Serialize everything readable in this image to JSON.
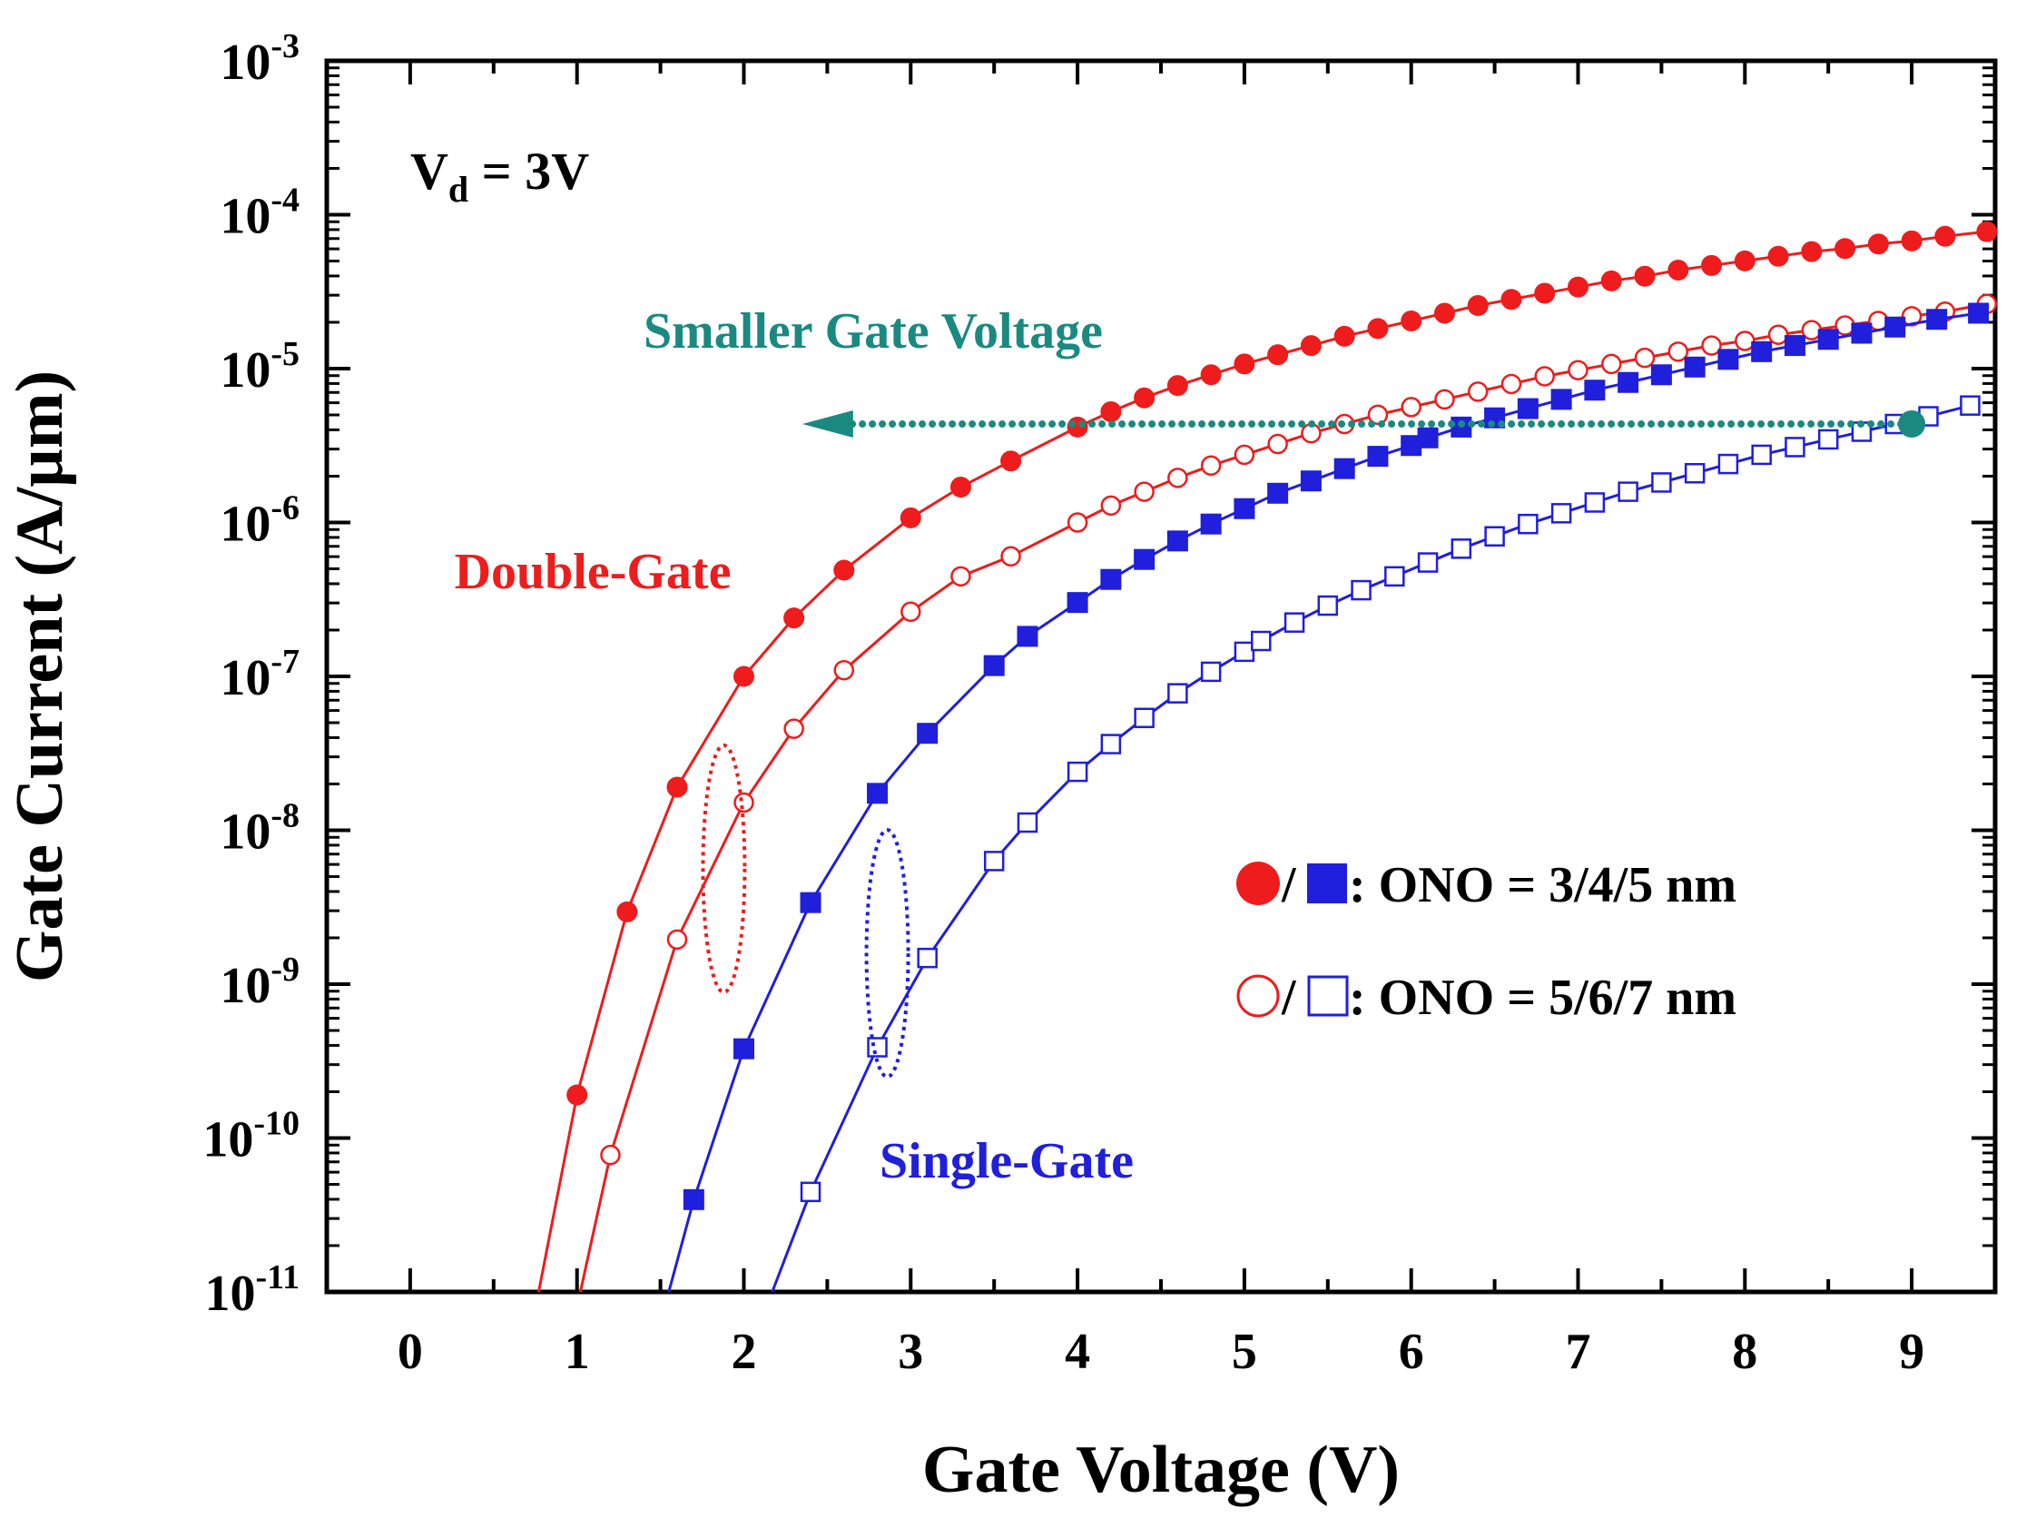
{
  "chart_data": {
    "type": "line",
    "title": "",
    "xlabel": "Gate Voltage (V)",
    "ylabel": "Gate Current (A/µm)",
    "xlim": [
      -0.5,
      9.5
    ],
    "ylim_log10": [
      -11,
      -3
    ],
    "yscale": "log",
    "x_ticks": [
      "0",
      "1",
      "2",
      "3",
      "4",
      "5",
      "6",
      "7",
      "8",
      "9"
    ],
    "y_ticks": [
      {
        "base": "10",
        "exp": "-3"
      },
      {
        "base": "10",
        "exp": "-4"
      },
      {
        "base": "10",
        "exp": "-5"
      },
      {
        "base": "10",
        "exp": "-6"
      },
      {
        "base": "10",
        "exp": "-7"
      },
      {
        "base": "10",
        "exp": "-8"
      },
      {
        "base": "10",
        "exp": "-9"
      },
      {
        "base": "10",
        "exp": "-10"
      },
      {
        "base": "10",
        "exp": "-11"
      }
    ],
    "condition": {
      "main": "V",
      "sub": "d",
      "rest": " = 3V"
    },
    "arrow_label": "Smaller Gate Voltage",
    "arrow": {
      "from_x": 9.0,
      "to_x": 2.35,
      "log10_y": -5.36,
      "color": "#1a8a80"
    },
    "group_labels": [
      {
        "text": "Double-Gate",
        "color": "#ee1c1c"
      },
      {
        "text": "Single-Gate",
        "color": "#1f1fdc"
      }
    ],
    "legend": [
      {
        "marker_filled": "circle",
        "marker_open": "circle",
        "sep": "/",
        "filled_color": "#ee1c1c",
        "open_color": "#1f1fdc",
        "text": ": ONO = 3/4/5 nm"
      },
      {
        "marker_filled": "circle",
        "marker_open": "square",
        "sep": "/",
        "filled_color": "#ee1c1c",
        "open_color": "#1f1fdc",
        "text": ": ONO = 5/6/7 nm"
      }
    ],
    "series": [
      {
        "name": "Double-Gate, ONO = 3/4/5 nm",
        "color": "#ee1c1c",
        "marker": "circle",
        "filled": true,
        "x": [
          0.77,
          1.0,
          1.3,
          1.6,
          2.0,
          2.3,
          2.6,
          3.0,
          3.3,
          3.6,
          4.0,
          4.2,
          4.4,
          4.6,
          4.8,
          5.0,
          5.2,
          5.4,
          5.6,
          5.8,
          6.0,
          6.2,
          6.4,
          6.6,
          6.8,
          7.0,
          7.2,
          7.4,
          7.6,
          7.8,
          8.0,
          8.2,
          8.4,
          8.6,
          8.8,
          9.0,
          9.2,
          9.45
        ],
        "log10_y": [
          -11.0,
          -9.72,
          -8.53,
          -7.72,
          -7.0,
          -6.62,
          -6.31,
          -5.97,
          -5.77,
          -5.6,
          -5.38,
          -5.28,
          -5.19,
          -5.11,
          -5.04,
          -4.97,
          -4.91,
          -4.85,
          -4.79,
          -4.74,
          -4.69,
          -4.64,
          -4.59,
          -4.55,
          -4.51,
          -4.47,
          -4.43,
          -4.4,
          -4.36,
          -4.33,
          -4.3,
          -4.27,
          -4.24,
          -4.22,
          -4.19,
          -4.17,
          -4.14,
          -4.11
        ],
        "marker_from": 1
      },
      {
        "name": "Double-Gate, ONO = 5/6/7 nm",
        "color": "#ee1c1c",
        "marker": "circle",
        "filled": false,
        "x": [
          1.02,
          1.2,
          1.6,
          2.0,
          2.3,
          2.6,
          3.0,
          3.3,
          3.6,
          4.0,
          4.2,
          4.4,
          4.6,
          4.8,
          5.0,
          5.2,
          5.4,
          5.6,
          5.8,
          6.0,
          6.2,
          6.4,
          6.6,
          6.8,
          7.0,
          7.2,
          7.4,
          7.6,
          7.8,
          8.0,
          8.2,
          8.4,
          8.6,
          8.8,
          9.0,
          9.2,
          9.45
        ],
        "log10_y": [
          -11.0,
          -10.11,
          -8.71,
          -7.82,
          -7.34,
          -6.96,
          -6.58,
          -6.35,
          -6.22,
          -6.0,
          -5.89,
          -5.8,
          -5.71,
          -5.63,
          -5.56,
          -5.49,
          -5.42,
          -5.36,
          -5.3,
          -5.25,
          -5.2,
          -5.15,
          -5.1,
          -5.05,
          -5.01,
          -4.97,
          -4.93,
          -4.89,
          -4.85,
          -4.82,
          -4.78,
          -4.75,
          -4.72,
          -4.69,
          -4.66,
          -4.63,
          -4.58
        ],
        "marker_from": 1
      },
      {
        "name": "Single-Gate, ONO = 3/4/5 nm",
        "color": "#1f1fdc",
        "marker": "square",
        "filled": true,
        "x": [
          1.55,
          1.7,
          2.0,
          2.4,
          2.8,
          3.1,
          3.5,
          3.7,
          4.0,
          4.2,
          4.4,
          4.6,
          4.8,
          5.0,
          5.2,
          5.4,
          5.6,
          5.8,
          6.0,
          6.1,
          6.3,
          6.5,
          6.7,
          6.9,
          7.1,
          7.3,
          7.5,
          7.7,
          7.9,
          8.1,
          8.3,
          8.5,
          8.7,
          8.9,
          9.15,
          9.4
        ],
        "log10_y": [
          -11.0,
          -10.4,
          -9.42,
          -8.47,
          -7.76,
          -7.37,
          -6.93,
          -6.74,
          -6.52,
          -6.37,
          -6.24,
          -6.12,
          -6.01,
          -5.91,
          -5.81,
          -5.73,
          -5.65,
          -5.57,
          -5.5,
          -5.45,
          -5.38,
          -5.32,
          -5.26,
          -5.2,
          -5.14,
          -5.09,
          -5.04,
          -4.99,
          -4.94,
          -4.89,
          -4.85,
          -4.81,
          -4.77,
          -4.73,
          -4.68,
          -4.64
        ],
        "marker_from": 1
      },
      {
        "name": "Single-Gate, ONO = 5/6/7 nm",
        "color": "#1f1fdc",
        "marker": "square",
        "filled": false,
        "x": [
          2.17,
          2.4,
          2.8,
          3.1,
          3.5,
          3.7,
          4.0,
          4.2,
          4.4,
          4.6,
          4.8,
          5.0,
          5.1,
          5.3,
          5.5,
          5.7,
          5.9,
          6.1,
          6.3,
          6.5,
          6.7,
          6.9,
          7.1,
          7.3,
          7.5,
          7.7,
          7.9,
          8.1,
          8.3,
          8.5,
          8.7,
          8.9,
          9.1,
          9.35
        ],
        "log10_y": [
          -11.0,
          -10.35,
          -9.41,
          -8.83,
          -8.2,
          -7.95,
          -7.62,
          -7.44,
          -7.27,
          -7.11,
          -6.97,
          -6.84,
          -6.77,
          -6.65,
          -6.54,
          -6.44,
          -6.35,
          -6.26,
          -6.17,
          -6.09,
          -6.01,
          -5.94,
          -5.87,
          -5.8,
          -5.74,
          -5.68,
          -5.62,
          -5.56,
          -5.51,
          -5.46,
          -5.41,
          -5.36,
          -5.31,
          -5.24
        ],
        "marker_from": 1
      }
    ],
    "annotation_ellipses": [
      {
        "group": "Double-Gate",
        "x_center": 1.88,
        "log10_center": -8.25,
        "color": "#ee1c1c"
      },
      {
        "group": "Single-Gate",
        "x_center": 2.86,
        "log10_center": -8.8,
        "color": "#1f1fdc"
      }
    ]
  }
}
